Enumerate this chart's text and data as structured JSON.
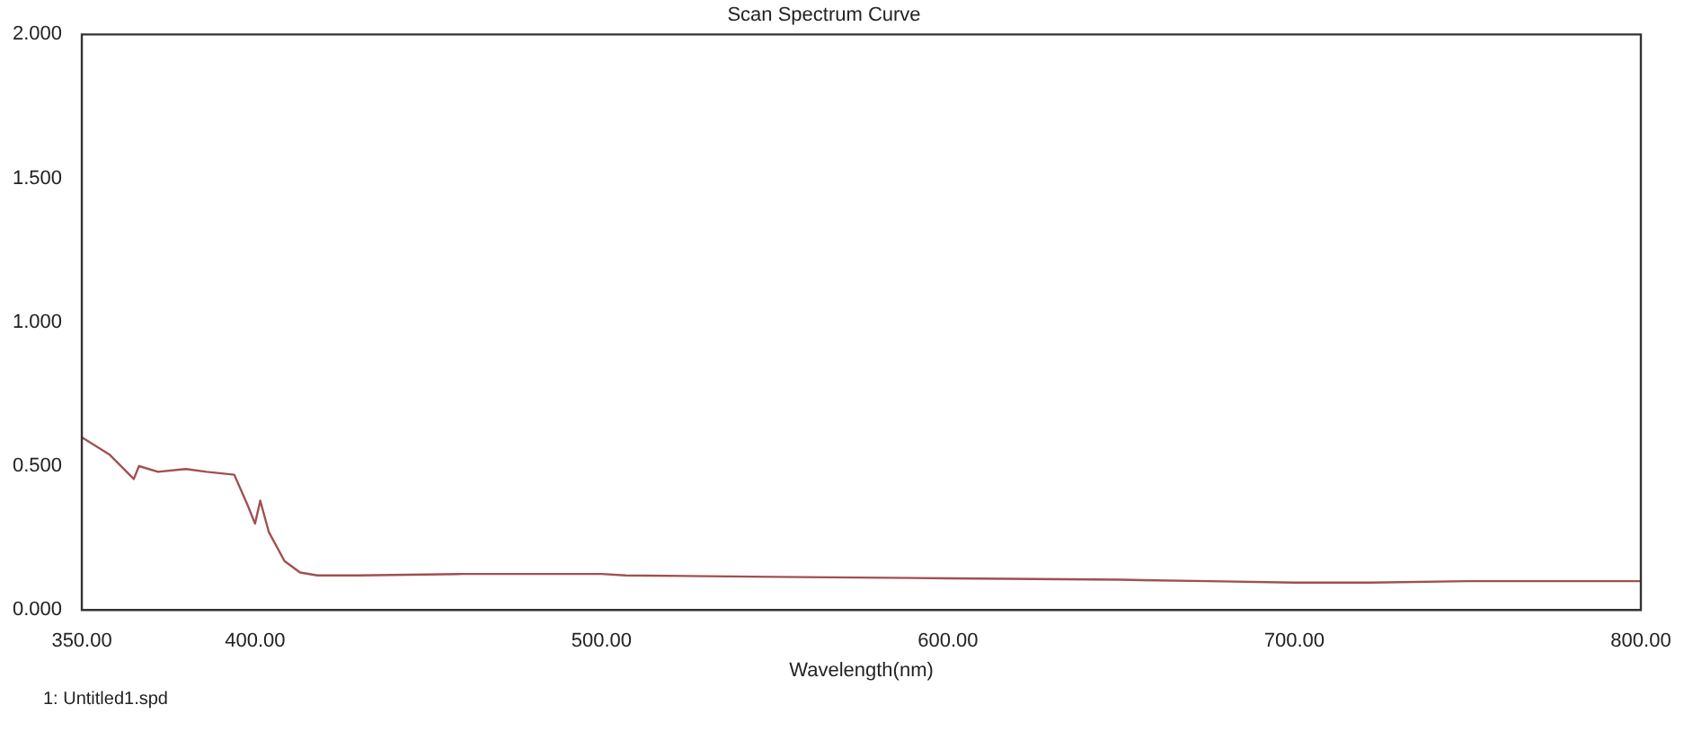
{
  "chart_data": {
    "type": "line",
    "title": "Scan Spectrum Curve",
    "xlabel": "Wavelength(nm)",
    "annotations": [
      "1: Untitled1.spd"
    ],
    "x": [
      350,
      358,
      365,
      366.5,
      372,
      380,
      386,
      394,
      398,
      400,
      401.5,
      404,
      408.5,
      413,
      418,
      430,
      460,
      500,
      507,
      550,
      600,
      650,
      675,
      700,
      722,
      750,
      800
    ],
    "series": [
      {
        "color": "#a05050",
        "values": [
          0.6,
          0.54,
          0.455,
          0.5,
          0.48,
          0.49,
          0.48,
          0.47,
          0.36,
          0.3,
          0.38,
          0.27,
          0.17,
          0.13,
          0.12,
          0.12,
          0.125,
          0.125,
          0.12,
          0.115,
          0.11,
          0.105,
          0.1,
          0.095,
          0.095,
          0.1,
          0.1
        ]
      }
    ],
    "xlim": [
      350,
      800
    ],
    "xticks": [
      {
        "value": 350,
        "label": "350.00"
      },
      {
        "value": 400,
        "label": "400.00"
      },
      {
        "value": 500,
        "label": "500.00"
      },
      {
        "value": 600,
        "label": "600.00"
      },
      {
        "value": 700,
        "label": "700.00"
      },
      {
        "value": 800,
        "label": "800.00"
      }
    ],
    "ylim": [
      0,
      2
    ],
    "yticks": [
      {
        "value": 0,
        "label": "0.000"
      },
      {
        "value": 0.5,
        "label": "0.500"
      },
      {
        "value": 1,
        "label": "1.000"
      },
      {
        "value": 1.5,
        "label": "1.500"
      },
      {
        "value": 2,
        "label": "2.000"
      }
    ],
    "grid": false,
    "legend": false,
    "marker": "none",
    "line_style": "solid"
  }
}
